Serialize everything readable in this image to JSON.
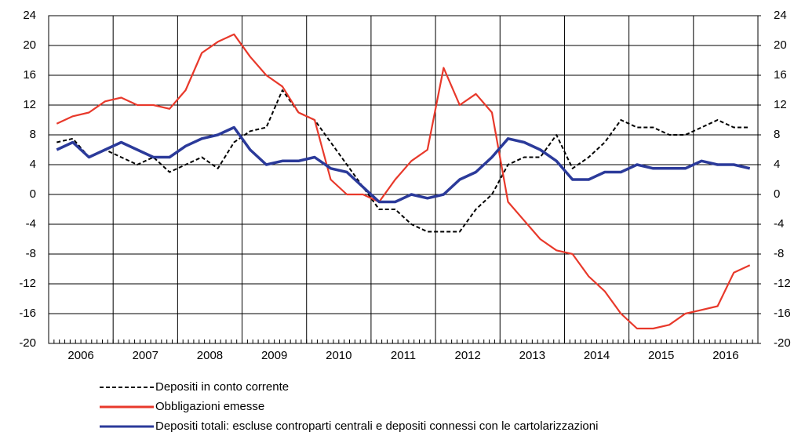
{
  "chart_data": {
    "type": "line",
    "x": [
      2006.125,
      2006.375,
      2006.625,
      2006.875,
      2007.125,
      2007.375,
      2007.625,
      2007.875,
      2008.125,
      2008.375,
      2008.625,
      2008.875,
      2009.125,
      2009.375,
      2009.625,
      2009.875,
      2010.125,
      2010.375,
      2010.625,
      2010.875,
      2011.125,
      2011.375,
      2011.625,
      2011.875,
      2012.125,
      2012.375,
      2012.625,
      2012.875,
      2013.125,
      2013.375,
      2013.625,
      2013.875,
      2014.125,
      2014.375,
      2014.625,
      2014.875,
      2015.125,
      2015.375,
      2015.625,
      2015.875,
      2016.125,
      2016.375,
      2016.625,
      2016.875
    ],
    "xlim": [
      2006,
      2017
    ],
    "xticks": [
      {
        "value": 2006.5,
        "label": "2006"
      },
      {
        "value": 2007.5,
        "label": "2007"
      },
      {
        "value": 2008.5,
        "label": "2008"
      },
      {
        "value": 2009.5,
        "label": "2009"
      },
      {
        "value": 2010.5,
        "label": "2010"
      },
      {
        "value": 2011.5,
        "label": "2011"
      },
      {
        "value": 2012.5,
        "label": "2012"
      },
      {
        "value": 2013.5,
        "label": "2013"
      },
      {
        "value": 2014.5,
        "label": "2014"
      },
      {
        "value": 2015.5,
        "label": "2015"
      },
      {
        "value": 2016.5,
        "label": "2016"
      }
    ],
    "ylim": [
      -20,
      24
    ],
    "yticks": [
      -20,
      -16,
      -12,
      -8,
      -4,
      0,
      4,
      8,
      12,
      16,
      20,
      24
    ],
    "y2lim": [
      -20,
      24
    ],
    "y2ticks": [
      -20,
      -16,
      -12,
      -8,
      -4,
      0,
      4,
      8,
      12,
      16,
      20,
      24
    ],
    "grid": true,
    "series": [
      {
        "name": "Depositi in conto corrente",
        "color": "#000000",
        "dash": true,
        "values": [
          7,
          7.5,
          5,
          6,
          5,
          4,
          5,
          3,
          4,
          5,
          3.5,
          7,
          8.5,
          9,
          14,
          11,
          10,
          7,
          4,
          1,
          -2,
          -2,
          -4,
          -5,
          -5,
          -5,
          -2,
          0,
          4,
          5,
          5,
          8,
          3.5,
          5,
          7,
          10,
          9,
          9,
          8,
          8,
          9,
          10,
          9,
          9
        ]
      },
      {
        "name": "Obbligazioni emesse",
        "color": "#e8392b",
        "values": [
          9.5,
          10.5,
          11,
          12.5,
          13,
          12,
          12,
          11.5,
          14,
          19,
          20.5,
          21.5,
          18.5,
          16,
          14.5,
          11,
          10,
          2,
          0,
          0,
          -1,
          2,
          4.5,
          6,
          17,
          12,
          13.5,
          11,
          -1,
          -3.5,
          -6,
          -7.5,
          -8,
          -11,
          -13,
          -16,
          -18,
          -18,
          -17.5,
          -16,
          -15.5,
          -15,
          -10.5,
          -9.5
        ]
      },
      {
        "name": "Depositi totali: escluse controparti centrali e depositi connessi con le cartolarizzazioni",
        "color": "#2b3a9a",
        "values": [
          6,
          7,
          5,
          6,
          7,
          6,
          5,
          5,
          6.5,
          7.5,
          8,
          9,
          6,
          4,
          4.5,
          4.5,
          5,
          3.5,
          3,
          1,
          -1,
          -1,
          0,
          -0.5,
          0,
          2,
          3,
          5,
          7.5,
          7,
          6,
          4.5,
          2,
          2,
          3,
          3,
          4,
          3.5,
          3.5,
          3.5,
          4.5,
          4,
          4,
          3.5
        ]
      }
    ]
  }
}
